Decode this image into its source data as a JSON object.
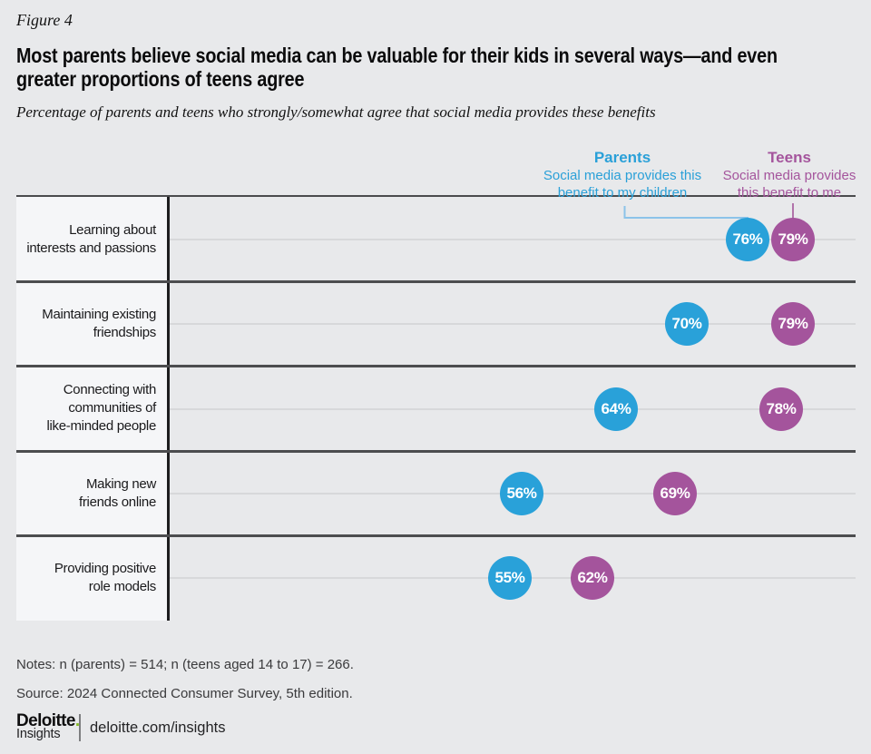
{
  "figure_label": "Figure 4",
  "title": {
    "line1": "Most parents believe social media can be valuable for their kids in several ways—and even",
    "line2": "greater proportions of teens agree"
  },
  "subtitle": "Percentage of parents and teens who strongly/somewhat agree that social media provides these benefits",
  "legend": {
    "parents": {
      "name": "Parents",
      "desc_line1": "Social media provides this",
      "desc_line2": "benefit to my children"
    },
    "teens": {
      "name": "Teens",
      "desc_line1": "Social media provides",
      "desc_line2": "this benefit to me"
    }
  },
  "chart_data": {
    "type": "scatter",
    "subtype": "horizontal-dot-plot",
    "value_suffix": "%",
    "xlim": [
      50,
      85
    ],
    "grid": "light midline per category row",
    "legend_position": "top-right",
    "categories": [
      "Learning about interests and passions",
      "Maintaining existing friendships",
      "Connecting with communities of like-minded people",
      "Making new friends online",
      "Providing positive role models"
    ],
    "category_lines": [
      [
        "Learning about",
        "interests and passions"
      ],
      [
        "Maintaining existing",
        "friendships"
      ],
      [
        "Connecting with",
        "communities of",
        "like-minded people"
      ],
      [
        "Making new",
        "friends online"
      ],
      [
        "Providing positive",
        "role models"
      ]
    ],
    "series": [
      {
        "name": "Parents",
        "color": "#29a1d9",
        "values": [
          76,
          70,
          64,
          56,
          55
        ]
      },
      {
        "name": "Teens",
        "color": "#a4549c",
        "values": [
          79,
          79,
          78,
          69,
          62
        ]
      }
    ]
  },
  "notes": "Notes: n (parents) = 514; n (teens aged 14 to 17) = 266.",
  "source": "Source: 2024 Connected Consumer Survey, 5th edition.",
  "footer": {
    "brand": "Deloitte",
    "brand_period": ".",
    "brand_sub": "Insights",
    "url": "deloitte.com/insights"
  },
  "colors": {
    "parents_blue": "#29a1d9",
    "teens_purple": "#a4549c",
    "parents_connector": "#8cc3e9",
    "teens_connector": "#b173aa",
    "brand_green": "#86bc25",
    "page_background": "#e8e9eb",
    "label_column_background": "#f5f6f8"
  }
}
